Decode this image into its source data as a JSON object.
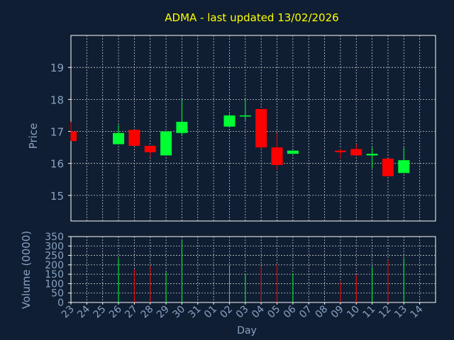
{
  "chart_data": {
    "type": "candlestick",
    "title": "ADMA - last updated 13/02/2026",
    "xlabel": "Day",
    "ylabel": "Price",
    "volume_label": "Volume (0000)",
    "x_ticks": [
      "23",
      "24",
      "25",
      "26",
      "27",
      "28",
      "29",
      "30",
      "31",
      "01",
      "02",
      "03",
      "04",
      "05",
      "06",
      "07",
      "08",
      "09",
      "10",
      "11",
      "12",
      "13",
      "14"
    ],
    "price_axis": {
      "ylim": [
        14.2,
        20.0
      ],
      "ticks": [
        15,
        16,
        17,
        18,
        19
      ]
    },
    "volume_axis": {
      "ylim": [
        0,
        350
      ],
      "ticks": [
        0,
        50,
        100,
        150,
        200,
        250,
        300,
        350
      ]
    },
    "grid": true,
    "colors": {
      "background": "#0f1e32",
      "plot_border": "#ffffff",
      "grid": "#c8c8c8",
      "title": "#ffff00",
      "axis_text": "#8aa2c4",
      "up": "#00ff33",
      "down": "#ff0000"
    },
    "candles": [
      {
        "day": "23",
        "open": 17.0,
        "high": 17.3,
        "low": 16.7,
        "close": 16.7,
        "volume": 0
      },
      {
        "day": "26",
        "open": 16.6,
        "high": 17.2,
        "low": 16.6,
        "close": 16.95,
        "volume": 235
      },
      {
        "day": "27",
        "open": 17.05,
        "high": 17.05,
        "low": 16.55,
        "close": 16.55,
        "volume": 175
      },
      {
        "day": "28",
        "open": 16.55,
        "high": 16.55,
        "low": 16.2,
        "close": 16.35,
        "volume": 195
      },
      {
        "day": "29",
        "open": 16.25,
        "high": 17.0,
        "low": 16.25,
        "close": 17.0,
        "volume": 160
      },
      {
        "day": "30",
        "open": 16.95,
        "high": 18.0,
        "low": 16.85,
        "close": 17.3,
        "volume": 330
      },
      {
        "day": "02",
        "open": 17.15,
        "high": 17.55,
        "low": 17.15,
        "close": 17.5,
        "volume": 200
      },
      {
        "day": "03",
        "open": 17.5,
        "high": 18.0,
        "low": 17.35,
        "close": 17.5,
        "volume": 150
      },
      {
        "day": "04",
        "open": 17.7,
        "high": 17.7,
        "low": 16.45,
        "close": 16.5,
        "volume": 190
      },
      {
        "day": "05",
        "open": 16.5,
        "high": 16.95,
        "low": 15.8,
        "close": 15.95,
        "volume": 200
      },
      {
        "day": "06",
        "open": 16.3,
        "high": 16.4,
        "low": 16.3,
        "close": 16.4,
        "volume": 155
      },
      {
        "day": "09",
        "open": 16.4,
        "high": 16.45,
        "low": 16.15,
        "close": 16.35,
        "volume": 110
      },
      {
        "day": "10",
        "open": 16.45,
        "high": 16.6,
        "low": 16.25,
        "close": 16.25,
        "volume": 145
      },
      {
        "day": "11",
        "open": 16.25,
        "high": 16.5,
        "low": 15.85,
        "close": 16.3,
        "volume": 190
      },
      {
        "day": "12",
        "open": 16.15,
        "high": 16.15,
        "low": 15.6,
        "close": 15.6,
        "volume": 225
      },
      {
        "day": "13",
        "open": 15.7,
        "high": 16.5,
        "low": 15.7,
        "close": 16.1,
        "volume": 235
      }
    ]
  }
}
